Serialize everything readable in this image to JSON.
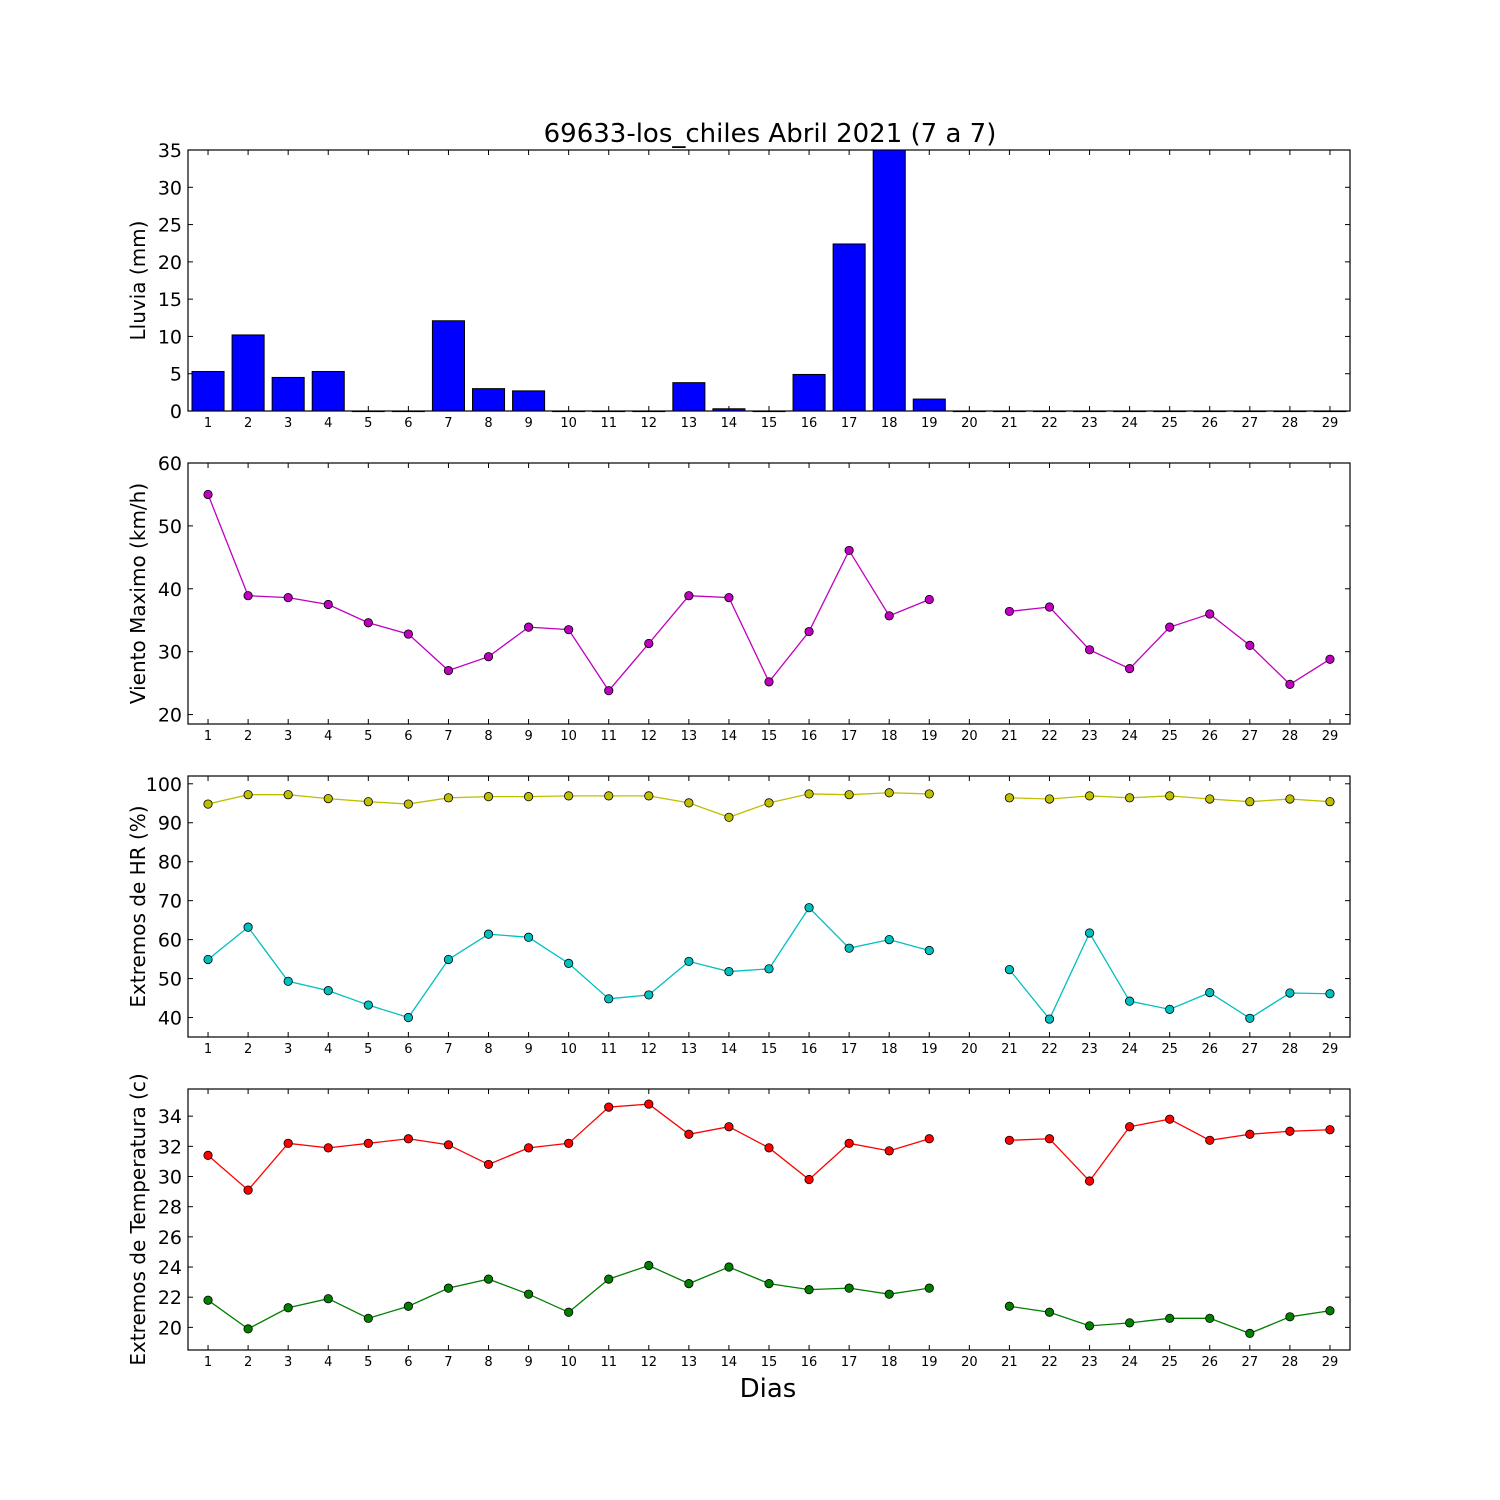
{
  "figure": {
    "title": "69633-los_chiles Abril 2021  (7 a 7)",
    "xlabel": "Dias"
  },
  "chart_data": [
    {
      "type": "bar",
      "ylabel": "Lluvia (mm)",
      "ylim": [
        0,
        35
      ],
      "yticks": [
        0,
        5,
        10,
        15,
        20,
        25,
        30,
        35
      ],
      "categories": [
        1,
        2,
        3,
        4,
        5,
        6,
        7,
        8,
        9,
        10,
        11,
        12,
        13,
        14,
        15,
        16,
        17,
        18,
        19,
        20,
        21,
        22,
        23,
        24,
        25,
        26,
        27,
        28,
        29
      ],
      "series": [
        {
          "color": "#0000ff",
          "values": [
            5.3,
            10.2,
            4.5,
            5.3,
            0,
            0,
            12.1,
            3.0,
            2.7,
            0,
            0,
            0,
            3.8,
            0.3,
            0,
            4.9,
            22.4,
            35.0,
            1.6,
            0,
            0,
            0,
            0,
            0,
            0,
            0,
            0,
            0,
            0
          ]
        }
      ]
    },
    {
      "type": "line",
      "ylabel": "Viento Maximo (km/h)",
      "ylim": [
        18.5,
        60
      ],
      "yticks": [
        20,
        30,
        40,
        50,
        60
      ],
      "categories": [
        1,
        2,
        3,
        4,
        5,
        6,
        7,
        8,
        9,
        10,
        11,
        12,
        13,
        14,
        15,
        16,
        17,
        18,
        19,
        20,
        21,
        22,
        23,
        24,
        25,
        26,
        27,
        28,
        29
      ],
      "series": [
        {
          "color": "#bf00bf",
          "values": [
            55.0,
            38.9,
            38.6,
            37.5,
            34.6,
            32.8,
            27.0,
            29.2,
            33.9,
            33.5,
            23.8,
            31.3,
            38.9,
            38.6,
            25.2,
            33.2,
            46.1,
            35.7,
            38.3,
            null,
            36.4,
            37.1,
            30.3,
            27.3,
            33.9,
            36.0,
            31.0,
            24.8,
            28.8
          ]
        }
      ]
    },
    {
      "type": "line",
      "ylabel": "Extremos de HR (%)",
      "ylim": [
        35,
        102
      ],
      "yticks": [
        40,
        50,
        60,
        70,
        80,
        90,
        100
      ],
      "categories": [
        1,
        2,
        3,
        4,
        5,
        6,
        7,
        8,
        9,
        10,
        11,
        12,
        13,
        14,
        15,
        16,
        17,
        18,
        19,
        20,
        21,
        22,
        23,
        24,
        25,
        26,
        27,
        28,
        29
      ],
      "series": [
        {
          "color": "#bfbf00",
          "values": [
            94.8,
            97.2,
            97.2,
            96.2,
            95.4,
            94.8,
            96.4,
            96.7,
            96.7,
            96.9,
            96.9,
            96.9,
            95.1,
            91.4,
            95.1,
            97.4,
            97.2,
            97.7,
            97.4,
            null,
            96.4,
            96.1,
            96.9,
            96.4,
            96.9,
            96.1,
            95.4,
            96.1,
            95.4
          ]
        },
        {
          "color": "#00bfbf",
          "values": [
            54.9,
            63.2,
            49.3,
            46.9,
            43.2,
            40.0,
            54.9,
            61.4,
            60.6,
            53.9,
            44.8,
            45.8,
            54.4,
            51.8,
            52.5,
            68.2,
            57.8,
            60.0,
            57.2,
            null,
            52.3,
            39.6,
            61.7,
            44.2,
            42.1,
            46.4,
            39.8,
            46.3,
            46.1
          ]
        }
      ]
    },
    {
      "type": "line",
      "ylabel": "Extremos de Temperatura (c)",
      "ylim": [
        18.5,
        35.8
      ],
      "yticks": [
        20,
        22,
        24,
        26,
        28,
        30,
        32,
        34
      ],
      "categories": [
        1,
        2,
        3,
        4,
        5,
        6,
        7,
        8,
        9,
        10,
        11,
        12,
        13,
        14,
        15,
        16,
        17,
        18,
        19,
        20,
        21,
        22,
        23,
        24,
        25,
        26,
        27,
        28,
        29
      ],
      "series": [
        {
          "color": "#ff0000",
          "values": [
            31.4,
            29.1,
            32.2,
            31.9,
            32.2,
            32.5,
            32.1,
            30.8,
            31.9,
            32.2,
            34.6,
            34.8,
            32.8,
            33.3,
            31.9,
            29.8,
            32.2,
            31.7,
            32.5,
            null,
            32.4,
            32.5,
            29.7,
            33.3,
            33.8,
            32.4,
            32.8,
            33.0,
            33.1
          ]
        },
        {
          "color": "#007f00",
          "values": [
            21.8,
            19.9,
            21.3,
            21.9,
            20.6,
            21.4,
            22.6,
            23.2,
            22.2,
            21.0,
            23.2,
            24.1,
            22.9,
            24.0,
            22.9,
            22.5,
            22.6,
            22.2,
            22.6,
            null,
            21.4,
            21.0,
            20.1,
            20.3,
            20.6,
            20.6,
            19.6,
            20.7,
            21.1
          ]
        }
      ]
    }
  ]
}
